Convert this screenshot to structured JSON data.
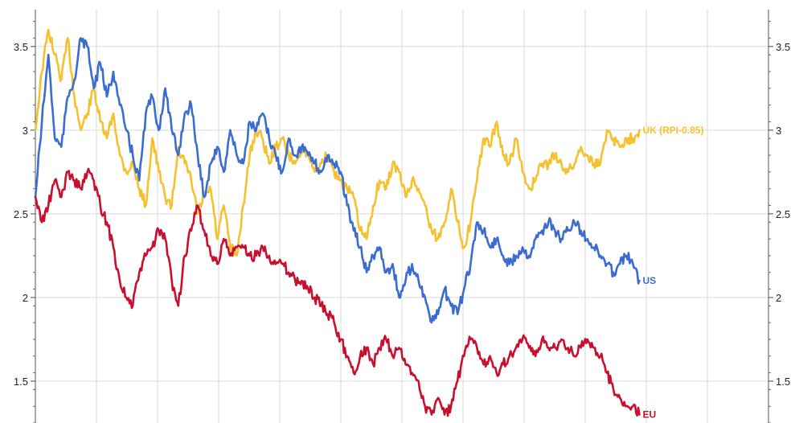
{
  "chart_data": {
    "type": "line",
    "title": "",
    "xlabel": "",
    "ylabel": "",
    "ylim": [
      1.25,
      3.72
    ],
    "yticks": [
      1.5,
      2,
      2.5,
      3,
      3.5
    ],
    "ytick_labels": [
      "1.5",
      "2",
      "2.5",
      "3",
      "3.5"
    ],
    "x_gridlines": 12,
    "grid": true,
    "x_domain": [
      0,
      100
    ],
    "series": [
      {
        "name": "UK (RPI-0.85)",
        "color": "#f6c12e",
        "x": [
          0,
          1,
          2,
          3,
          4,
          5,
          6,
          7,
          8,
          9,
          10,
          11,
          12,
          13,
          14,
          15,
          16,
          17,
          18,
          19,
          20,
          21,
          22,
          23,
          24,
          25,
          26,
          27,
          28,
          29,
          30,
          31,
          32,
          33,
          34,
          35,
          36,
          37,
          38,
          39,
          40,
          41,
          42,
          43,
          44,
          45,
          46,
          47,
          48,
          49,
          50,
          51,
          52,
          53,
          54,
          55,
          56,
          57,
          58,
          59,
          60,
          61,
          62,
          63,
          64,
          65,
          66,
          67,
          68,
          69,
          70,
          71,
          72,
          73,
          74,
          75,
          76,
          77,
          78,
          79,
          80,
          81,
          82,
          83,
          84,
          85,
          86,
          87,
          88,
          89,
          90,
          91,
          92,
          93
        ],
        "values": [
          3.0,
          3.35,
          3.6,
          3.45,
          3.3,
          3.55,
          3.2,
          3.0,
          3.1,
          3.25,
          3.05,
          2.95,
          3.1,
          2.85,
          2.75,
          2.8,
          2.65,
          2.55,
          2.95,
          2.75,
          2.6,
          2.55,
          2.9,
          2.8,
          2.7,
          2.5,
          2.6,
          2.65,
          2.35,
          2.55,
          2.3,
          2.25,
          2.55,
          2.85,
          3.0,
          2.95,
          2.8,
          2.9,
          2.95,
          2.85,
          2.8,
          2.9,
          2.85,
          2.75,
          2.8,
          2.85,
          2.75,
          2.7,
          2.65,
          2.6,
          2.4,
          2.35,
          2.55,
          2.7,
          2.65,
          2.8,
          2.75,
          2.6,
          2.7,
          2.65,
          2.55,
          2.4,
          2.35,
          2.45,
          2.65,
          2.45,
          2.3,
          2.45,
          2.7,
          2.95,
          2.9,
          3.05,
          2.85,
          2.8,
          2.95,
          2.75,
          2.65,
          2.7,
          2.8,
          2.8,
          2.85,
          2.8,
          2.75,
          2.8,
          2.9,
          2.85,
          2.8,
          2.8,
          3.0,
          2.95,
          2.9,
          2.95,
          2.95,
          3.0
        ]
      },
      {
        "name": "US",
        "color": "#3b6ccf",
        "x": [
          0,
          1,
          2,
          3,
          4,
          5,
          6,
          7,
          8,
          9,
          10,
          11,
          12,
          13,
          14,
          15,
          16,
          17,
          18,
          19,
          20,
          21,
          22,
          23,
          24,
          25,
          26,
          27,
          28,
          29,
          30,
          31,
          32,
          33,
          34,
          35,
          36,
          37,
          38,
          39,
          40,
          41,
          42,
          43,
          44,
          45,
          46,
          47,
          48,
          49,
          50,
          51,
          52,
          53,
          54,
          55,
          56,
          57,
          58,
          59,
          60,
          61,
          62,
          63,
          64,
          65,
          66,
          67,
          68,
          69,
          70,
          71,
          72,
          73,
          74,
          75,
          76,
          77,
          78,
          79,
          80,
          81,
          82,
          83,
          84,
          85,
          86,
          87,
          88,
          89,
          90,
          91,
          92,
          93
        ],
        "values": [
          2.6,
          3.05,
          3.45,
          2.95,
          2.9,
          3.2,
          3.3,
          3.55,
          3.5,
          3.25,
          3.4,
          3.2,
          3.35,
          3.15,
          3.0,
          2.85,
          2.7,
          3.1,
          3.2,
          3.0,
          3.25,
          3.0,
          2.85,
          3.1,
          3.15,
          2.85,
          2.6,
          2.8,
          2.9,
          2.75,
          3.0,
          2.85,
          2.8,
          3.05,
          3.0,
          3.1,
          2.95,
          2.85,
          2.75,
          2.95,
          2.85,
          2.9,
          2.85,
          2.8,
          2.75,
          2.85,
          2.8,
          2.75,
          2.55,
          2.4,
          2.3,
          2.15,
          2.25,
          2.3,
          2.15,
          2.2,
          2.0,
          2.1,
          2.2,
          2.1,
          2.0,
          1.85,
          1.9,
          2.05,
          1.95,
          1.9,
          2.05,
          2.2,
          2.45,
          2.4,
          2.3,
          2.35,
          2.25,
          2.2,
          2.25,
          2.3,
          2.25,
          2.35,
          2.4,
          2.45,
          2.4,
          2.35,
          2.4,
          2.45,
          2.4,
          2.35,
          2.3,
          2.25,
          2.2,
          2.15,
          2.2,
          2.25,
          2.2,
          2.1
        ]
      },
      {
        "name": "EU",
        "color": "#c8102e",
        "x": [
          0,
          1,
          2,
          3,
          4,
          5,
          6,
          7,
          8,
          9,
          10,
          11,
          12,
          13,
          14,
          15,
          16,
          17,
          18,
          19,
          20,
          21,
          22,
          23,
          24,
          25,
          26,
          27,
          28,
          29,
          30,
          31,
          32,
          33,
          34,
          35,
          36,
          37,
          38,
          39,
          40,
          41,
          42,
          43,
          44,
          45,
          46,
          47,
          48,
          49,
          50,
          51,
          52,
          53,
          54,
          55,
          56,
          57,
          58,
          59,
          60,
          61,
          62,
          63,
          64,
          65,
          66,
          67,
          68,
          69,
          70,
          71,
          72,
          73,
          74,
          75,
          76,
          77,
          78,
          79,
          80,
          81,
          82,
          83,
          84,
          85,
          86,
          87,
          88,
          89,
          90,
          91,
          92,
          93
        ],
        "values": [
          2.6,
          2.45,
          2.55,
          2.7,
          2.6,
          2.75,
          2.7,
          2.65,
          2.75,
          2.7,
          2.55,
          2.45,
          2.3,
          2.1,
          2.0,
          1.95,
          2.15,
          2.25,
          2.3,
          2.4,
          2.35,
          2.1,
          1.95,
          2.25,
          2.4,
          2.55,
          2.4,
          2.25,
          2.2,
          2.35,
          2.25,
          2.3,
          2.3,
          2.25,
          2.25,
          2.3,
          2.25,
          2.2,
          2.2,
          2.15,
          2.1,
          2.1,
          2.05,
          2.0,
          1.95,
          1.9,
          1.85,
          1.75,
          1.65,
          1.55,
          1.65,
          1.7,
          1.6,
          1.7,
          1.75,
          1.65,
          1.7,
          1.6,
          1.55,
          1.5,
          1.35,
          1.3,
          1.4,
          1.3,
          1.35,
          1.5,
          1.65,
          1.75,
          1.7,
          1.6,
          1.65,
          1.55,
          1.6,
          1.65,
          1.7,
          1.75,
          1.7,
          1.65,
          1.75,
          1.7,
          1.7,
          1.75,
          1.7,
          1.65,
          1.7,
          1.75,
          1.7,
          1.65,
          1.55,
          1.45,
          1.4,
          1.35,
          1.35,
          1.3
        ]
      }
    ]
  }
}
